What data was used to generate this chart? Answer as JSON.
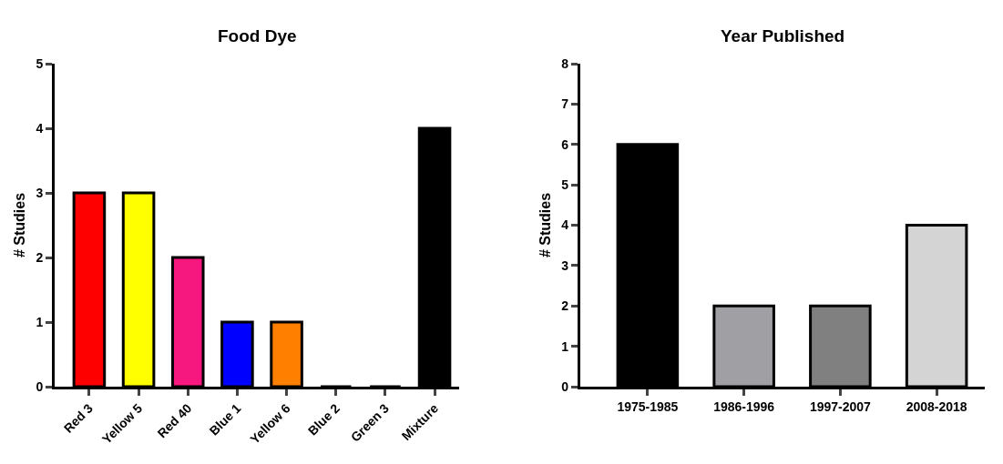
{
  "chart_data": [
    {
      "type": "bar",
      "title": "Food Dye",
      "ylabel": "# Studies",
      "categories": [
        "Red 3",
        "Yellow 5",
        "Red 40",
        "Blue 1",
        "Yellow 6",
        "Blue 2",
        "Green 3",
        "Mixture"
      ],
      "values": [
        3,
        3,
        2,
        1,
        1,
        0,
        0,
        4
      ],
      "colors": [
        "#ff0000",
        "#ffff00",
        "#f7187f",
        "#0000ff",
        "#ff7f00",
        "#000000",
        "#000000",
        "#000000"
      ],
      "ylim": [
        0,
        5
      ],
      "yticks": [
        0,
        1,
        2,
        3,
        4,
        5
      ]
    },
    {
      "type": "bar",
      "title": "Year Published",
      "ylabel": "# Studies",
      "categories": [
        "1975-1985",
        "1986-1996",
        "1997-2007",
        "2008-2018"
      ],
      "values": [
        6,
        2,
        2,
        4
      ],
      "colors": [
        "#000000",
        "#a0a0a4",
        "#808080",
        "#d4d4d4"
      ],
      "ylim": [
        0,
        8
      ],
      "yticks": [
        0,
        1,
        2,
        3,
        4,
        5,
        6,
        7,
        8
      ]
    }
  ]
}
